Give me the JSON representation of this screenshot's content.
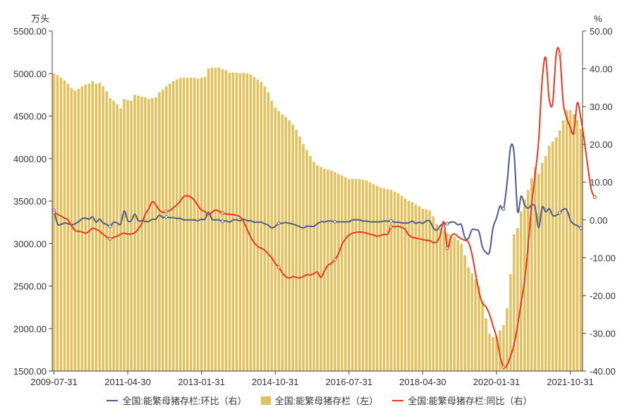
{
  "chart_data": {
    "type": "bar+line",
    "left_unit": "万头",
    "right_unit": "%",
    "y_left": {
      "min": 1500,
      "max": 5500,
      "ticks": [
        "1500.00",
        "2000.00",
        "2500.00",
        "3000.00",
        "3500.00",
        "4000.00",
        "4500.00",
        "5000.00",
        "5500.00"
      ]
    },
    "y_right": {
      "min": -40,
      "max": 50,
      "ticks": [
        "-40.00",
        "-30.00",
        "-20.00",
        "-10.00",
        "0.00",
        "10.00",
        "20.00",
        "30.00",
        "40.00",
        "50.00"
      ]
    },
    "x_tick_labels": [
      "2009-07-31",
      "2011-04-30",
      "2013-01-31",
      "2014-10-31",
      "2016-07-31",
      "2018-04-30",
      "2020-01-31",
      "2021-10-31"
    ],
    "x_tick_index": [
      0,
      21,
      42,
      63,
      84,
      105,
      126,
      147
    ],
    "x_start": "2009-07-31",
    "colors": {
      "bar": "#E2C15E",
      "mom": "#4E5C8C",
      "yoy": "#E8381E",
      "axis": "#444444"
    },
    "legend": [
      {
        "name": "全国:能繁母猪存栏:环比（右）",
        "type": "line",
        "color": "#4E5C8C"
      },
      {
        "name": "全国:能繁母猪存栏（左）",
        "type": "bar",
        "color": "#E2C15E"
      },
      {
        "name": "全国:能繁母猪存栏:同比（右）",
        "type": "line",
        "color": "#E8381E"
      }
    ],
    "series": [
      {
        "name": "全国:能繁母猪存栏（左）",
        "axis": "left",
        "values": [
          5000,
          4980,
          4950,
          4920,
          4880,
          4830,
          4800,
          4820,
          4850,
          4870,
          4880,
          4910,
          4880,
          4890,
          4850,
          4790,
          4710,
          4680,
          4640,
          4590,
          4700,
          4690,
          4680,
          4750,
          4740,
          4730,
          4720,
          4700,
          4710,
          4720,
          4780,
          4810,
          4850,
          4880,
          4910,
          4930,
          4950,
          4950,
          4950,
          4950,
          4950,
          4940,
          4950,
          4960,
          5060,
          5070,
          5070,
          5070,
          5050,
          5040,
          5010,
          5010,
          5010,
          5000,
          5010,
          5000,
          4990,
          4960,
          4930,
          4900,
          4850,
          4780,
          4680,
          4600,
          4560,
          4520,
          4490,
          4450,
          4400,
          4340,
          4260,
          4170,
          4100,
          4030,
          3960,
          3920,
          3900,
          3880,
          3870,
          3860,
          3840,
          3820,
          3800,
          3780,
          3760,
          3760,
          3760,
          3760,
          3750,
          3740,
          3720,
          3700,
          3680,
          3660,
          3650,
          3640,
          3630,
          3610,
          3590,
          3560,
          3530,
          3500,
          3490,
          3460,
          3440,
          3410,
          3400,
          3390,
          3320,
          3230,
          3180,
          3150,
          3120,
          3100,
          3080,
          3040,
          3000,
          2860,
          2720,
          2650,
          2580,
          2500,
          2320,
          2120,
          1940,
          1900,
          1910,
          1980,
          2040,
          2240,
          2640,
          3110,
          3180,
          3380,
          3520,
          3630,
          3770,
          3900,
          3820,
          3950,
          4030,
          4150,
          4200,
          4250,
          4330,
          4450,
          4570,
          4570,
          4520,
          4450,
          4350
        ]
      },
      {
        "name": "全国:能繁母猪存栏:环比（右）",
        "axis": "right",
        "values": [
          2.5,
          -1.0,
          -1.2,
          -0.8,
          -1.0,
          -1.3,
          -1.0,
          -0.5,
          0.3,
          0.5,
          0.2,
          0.8,
          -0.6,
          0.2,
          -0.8,
          -1.2,
          -1.7,
          -0.6,
          -0.8,
          -1.1,
          2.4,
          -0.2,
          -0.2,
          1.5,
          -0.2,
          -0.2,
          -0.4,
          -0.4,
          0.2,
          0.2,
          1.3,
          0.6,
          0.8,
          0.6,
          0.6,
          0.4,
          0.4,
          0.0,
          0.0,
          0.0,
          0.0,
          -0.2,
          0.2,
          0.2,
          2.0,
          0.2,
          0.0,
          0.0,
          -0.4,
          -0.2,
          -0.6,
          0.0,
          0.0,
          -0.2,
          0.2,
          -0.2,
          -0.2,
          -0.6,
          -0.6,
          -0.6,
          -1.0,
          -1.4,
          -2.1,
          -1.7,
          -0.9,
          -0.9,
          -0.7,
          -0.9,
          -1.1,
          -1.4,
          -1.8,
          -2.1,
          -1.7,
          -1.7,
          -1.7,
          -1.0,
          -0.5,
          -0.5,
          -0.3,
          -0.3,
          -0.5,
          -0.5,
          -0.5,
          -0.5,
          -0.5,
          0.0,
          0.0,
          0.0,
          -0.3,
          -0.3,
          -0.5,
          -0.5,
          -0.5,
          -0.5,
          -0.3,
          -0.3,
          -0.3,
          -0.6,
          -0.6,
          -0.8,
          -0.8,
          -0.8,
          -0.3,
          -0.9,
          -0.6,
          -0.9,
          -0.3,
          -0.3,
          -2.1,
          -2.7,
          -1.5,
          -0.9,
          -1.0,
          -0.6,
          -0.6,
          -1.3,
          -1.3,
          -4.7,
          -4.9,
          -2.6,
          -2.6,
          -3.1,
          -7.2,
          -8.6,
          -8.5,
          -2.1,
          0.5,
          3.7,
          2.9,
          9.8,
          19.3,
          17.6,
          2.3,
          6.3,
          4.0,
          3.1,
          3.9,
          3.4,
          -2.1,
          3.4,
          2.1,
          3.0,
          1.2,
          1.2,
          1.9,
          2.8,
          2.7,
          0.0,
          -1.1,
          -1.5,
          -2.2
        ]
      },
      {
        "name": "全国:能繁母猪存栏:同比（右）",
        "axis": "right",
        "values": [
          2.0,
          1.5,
          1.0,
          0.5,
          0.0,
          -1.5,
          -2.8,
          -3.0,
          -3.2,
          -3.5,
          -3.0,
          -2.2,
          -2.5,
          -3.0,
          -3.8,
          -4.5,
          -5.0,
          -4.6,
          -4.3,
          -3.8,
          -3.5,
          -3.8,
          -3.7,
          -3.4,
          -2.4,
          -1.0,
          1.5,
          3.0,
          4.8,
          4.0,
          2.6,
          2.0,
          2.2,
          2.5,
          3.2,
          4.0,
          5.0,
          6.2,
          6.4,
          6.0,
          5.2,
          3.8,
          2.6,
          2.2,
          1.5,
          2.0,
          2.6,
          2.3,
          1.8,
          1.6,
          1.5,
          1.4,
          1.2,
          0.8,
          -0.5,
          -2.5,
          -4.5,
          -6.0,
          -7.0,
          -7.5,
          -8.0,
          -9.0,
          -10.0,
          -11.5,
          -12.5,
          -14.0,
          -15.0,
          -15.4,
          -15.0,
          -15.2,
          -15.3,
          -15.0,
          -14.5,
          -14.6,
          -14.2,
          -13.8,
          -15.2,
          -13.5,
          -12.0,
          -11.5,
          -10.5,
          -9.0,
          -6.5,
          -5.0,
          -4.0,
          -3.5,
          -3.3,
          -3.2,
          -3.3,
          -3.5,
          -3.8,
          -4.0,
          -4.3,
          -4.1,
          -3.8,
          -3.8,
          -1.8,
          -1.8,
          -1.7,
          -2.0,
          -2.5,
          -4.0,
          -4.6,
          -4.8,
          -5.0,
          -5.2,
          -5.4,
          -5.5,
          -6.0,
          -5.8,
          -4.0,
          -0.5,
          -7.5,
          -4.5,
          -3.7,
          -4.4,
          -5.0,
          -5.4,
          -5.9,
          -9.0,
          -14.0,
          -19.0,
          -22.0,
          -23.0,
          -25.0,
          -28.0,
          -31.0,
          -36.0,
          -39.0,
          -38.5,
          -36.0,
          -33.0,
          -28.0,
          -22.0,
          -16.0,
          -7.0,
          4.0,
          12.0,
          21.0,
          37.0,
          43.0,
          32.0,
          31.0,
          44.0,
          44.0,
          31.0,
          27.0,
          24.5,
          23.0,
          31.0,
          27.0,
          21.0,
          14.0,
          8.0,
          6.0
        ]
      }
    ]
  }
}
